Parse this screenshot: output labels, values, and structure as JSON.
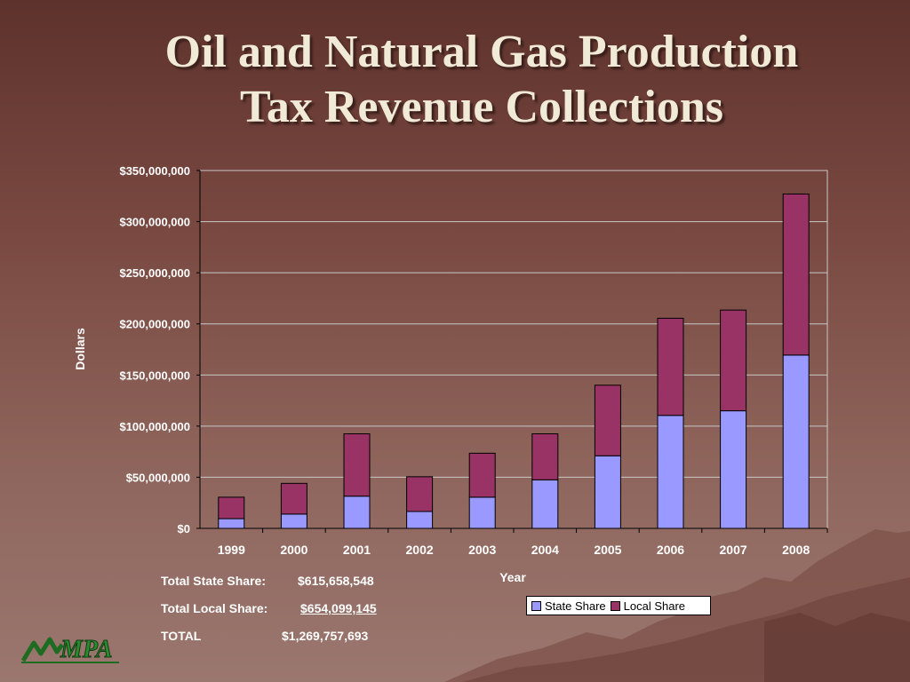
{
  "slide": {
    "title_line1": "Oil and Natural Gas Production",
    "title_line2": "Tax Revenue Collections"
  },
  "colors": {
    "state": "#9999ff",
    "local": "#993366",
    "grid": "#c8c8c8",
    "axis_text": "#ffffff"
  },
  "chart_data": {
    "type": "bar",
    "stacked": true,
    "title": "",
    "xlabel": "Year",
    "ylabel": "Dollars",
    "categories": [
      "1999",
      "2000",
      "2001",
      "2002",
      "2003",
      "2004",
      "2005",
      "2006",
      "2007",
      "2008"
    ],
    "series": [
      {
        "name": "State Share",
        "values": [
          9500000,
          14000000,
          31500000,
          16500000,
          30500000,
          47500000,
          71000000,
          110500000,
          115000000,
          169500000
        ]
      },
      {
        "name": "Local Share",
        "values": [
          21000000,
          30000000,
          61000000,
          34000000,
          43000000,
          45000000,
          69000000,
          95000000,
          98500000,
          157500000
        ]
      }
    ],
    "ylim": [
      0,
      350000000
    ],
    "yticks": [
      "$0",
      "$50,000,000",
      "$100,000,000",
      "$150,000,000",
      "$200,000,000",
      "$250,000,000",
      "$300,000,000",
      "$350,000,000"
    ],
    "grid": true,
    "legend_position": "bottom-right"
  },
  "totals": {
    "state_label": "Total State Share:",
    "state_value": "$615,658,548",
    "local_label": "Total Local Share:",
    "local_value": "$654,099,145",
    "total_label": "TOTAL",
    "total_value": "$1,269,757,693"
  },
  "logo": {
    "text": "MPA",
    "icon": "mpa-logo"
  }
}
